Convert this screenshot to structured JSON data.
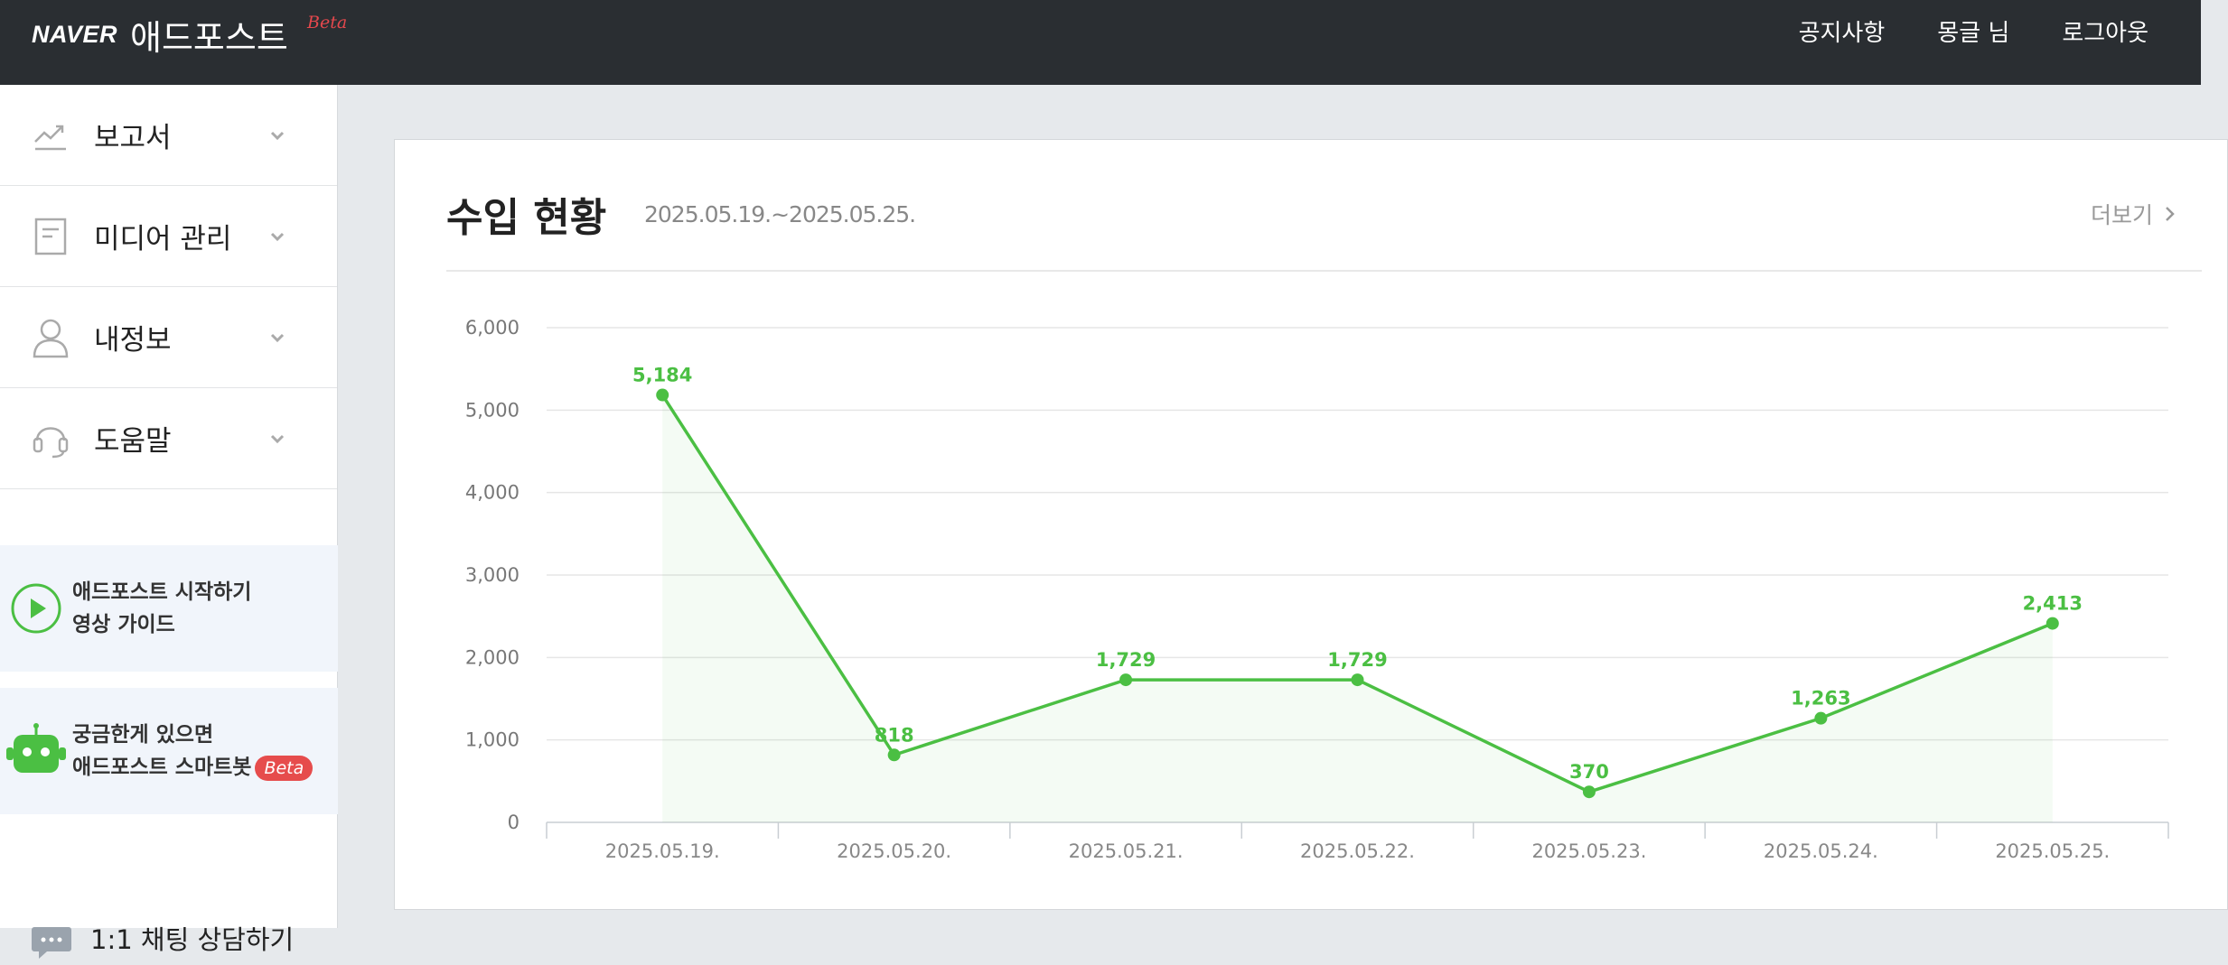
{
  "header": {
    "brand_naver": "NAVER",
    "brand_name": "애드포스트",
    "brand_beta": "Beta",
    "nav": [
      "공지사항",
      "몽글 님",
      "로그아웃"
    ]
  },
  "sidebar": {
    "items": [
      {
        "label": "보고서",
        "icon": "trend-chart-icon"
      },
      {
        "label": "미디어 관리",
        "icon": "document-icon"
      },
      {
        "label": "내정보",
        "icon": "person-icon"
      },
      {
        "label": "도움말",
        "icon": "headset-icon"
      }
    ],
    "guide": {
      "line1": "애드포스트 시작하기",
      "line2": "영상 가이드"
    },
    "chatbot": {
      "line1": "궁금한게 있으면",
      "line2": "애드포스트 스마트봇",
      "badge": "Beta"
    },
    "chat": {
      "label": "1:1 채팅 상담하기"
    }
  },
  "card": {
    "title": "수입 현황",
    "date_range": "2025.05.19.~2025.05.25.",
    "more": "더보기"
  },
  "colors": {
    "accent": "#4bbf43",
    "topbar": "#2a2e32"
  },
  "chart_data": {
    "type": "line",
    "x": [
      "2025.05.19.",
      "2025.05.20.",
      "2025.05.21.",
      "2025.05.22.",
      "2025.05.23.",
      "2025.05.24.",
      "2025.05.25."
    ],
    "series": [
      {
        "values": [
          5184,
          818,
          1729,
          1729,
          370,
          1263,
          2413
        ]
      }
    ],
    "data_labels": [
      "5,184",
      "818",
      "1,729",
      "1,729",
      "370",
      "1,263",
      "2,413"
    ],
    "yticks": [
      "0",
      "1,000",
      "2,000",
      "3,000",
      "4,000",
      "5,000",
      "6,000"
    ],
    "ylim": [
      0,
      6000
    ],
    "grid": true,
    "area_fill": true
  }
}
